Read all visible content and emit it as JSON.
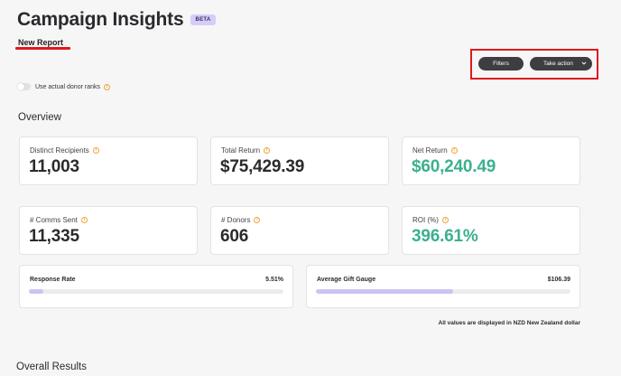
{
  "header": {
    "title": "Campaign Insights",
    "badge": "BETA",
    "report_name": "New Report"
  },
  "toolbar": {
    "filters_label": "Filters",
    "take_action_label": "Take action"
  },
  "toggle": {
    "label": "Use actual donor ranks",
    "checked": false
  },
  "overview": {
    "title": "Overview",
    "metrics": [
      {
        "label": "Distinct Recipients",
        "value": "11,003",
        "accent": false
      },
      {
        "label": "Total Return",
        "value": "$75,429.39",
        "accent": false
      },
      {
        "label": "Net Return",
        "value": "$60,240.49",
        "accent": true
      },
      {
        "label": "# Comms Sent",
        "value": "11,335",
        "accent": false
      },
      {
        "label": "# Donors",
        "value": "606",
        "accent": false
      },
      {
        "label": "ROI (%)",
        "value": "396.61%",
        "accent": true
      }
    ]
  },
  "gauges": [
    {
      "label": "Response Rate",
      "value": "5.51%",
      "fill_fraction": 0.055
    },
    {
      "label": "Average Gift Gauge",
      "value": "$106.39",
      "fill_fraction": 0.54
    }
  ],
  "footnote": "All values are displayed in NZD New Zealand dollar",
  "overall_results_title": "Overall Results",
  "colors": {
    "accent_green": "#3bb08f",
    "highlight_red": "#e0191c",
    "button_dark": "#3d3d42",
    "info_orange": "#f2a23a",
    "gauge_purple": "#cdc2f4"
  }
}
